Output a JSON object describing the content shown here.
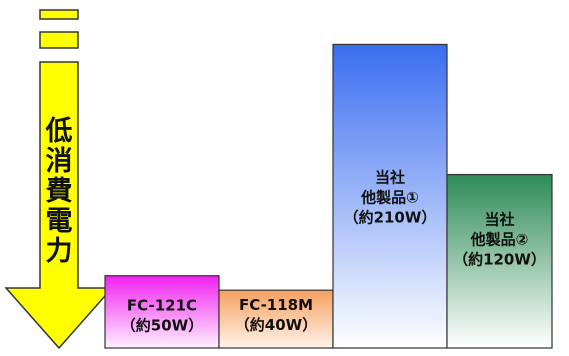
{
  "chart_data": {
    "type": "bar",
    "title": "",
    "xlabel": "",
    "ylabel": "",
    "arrow_label": [
      "低",
      "消",
      "費",
      "電",
      "力"
    ],
    "ylim": [
      0,
      220
    ],
    "categories": [
      [
        "FC-121C",
        "（約50W）"
      ],
      [
        "FC-118M",
        "（約40W）"
      ],
      [
        "当社",
        "他製品①",
        "（約210W）"
      ],
      [
        "当社",
        "他製品②",
        "（約120W）"
      ]
    ],
    "values": [
      50,
      40,
      210,
      120
    ],
    "colors": [
      [
        "#f020f0",
        "#fff0ff"
      ],
      [
        "#f6a060",
        "#fff3ea"
      ],
      [
        "#3a6df0",
        "#ffffff"
      ],
      [
        "#2e8b57",
        "#ffffff"
      ]
    ],
    "arrow_color": "#ffff00"
  }
}
